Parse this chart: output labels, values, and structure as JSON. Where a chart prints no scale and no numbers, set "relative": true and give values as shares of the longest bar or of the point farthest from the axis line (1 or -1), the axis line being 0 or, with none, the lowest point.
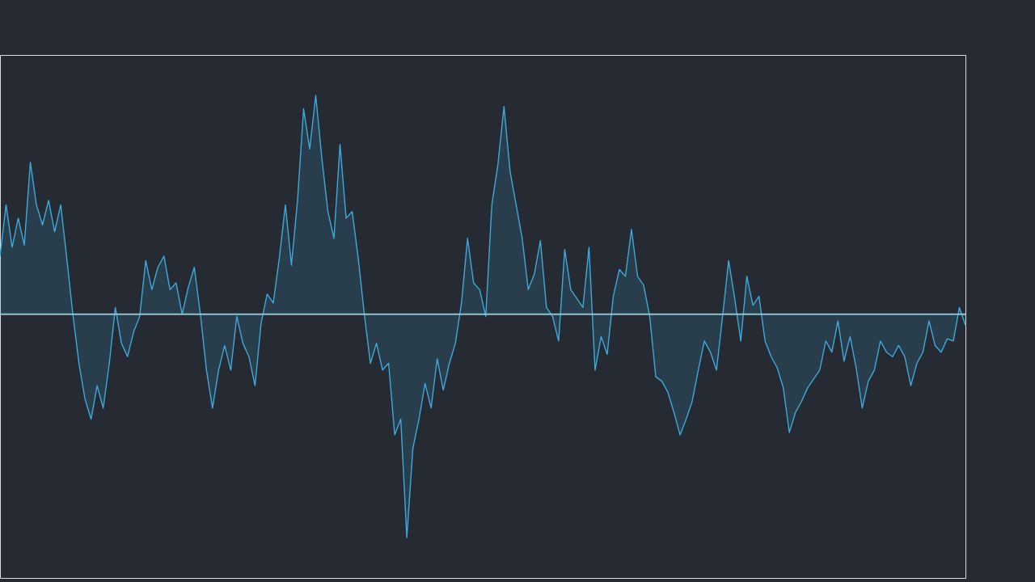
{
  "chart_data": {
    "type": "area",
    "relative": true,
    "categories": [
      null,
      null,
      null,
      null,
      null,
      null,
      null,
      null,
      null,
      null,
      null,
      null,
      null,
      null,
      null,
      null,
      null,
      null,
      null,
      null,
      null,
      null,
      null,
      null,
      null,
      null,
      null,
      null,
      null,
      null,
      null,
      null,
      null,
      null,
      null,
      null,
      null,
      null,
      null,
      null,
      null,
      null,
      null,
      null,
      null,
      null,
      null,
      null,
      null,
      null,
      null,
      null,
      null,
      null,
      null,
      null,
      null,
      null,
      null,
      null,
      null,
      null,
      null,
      null,
      null,
      null,
      null,
      null,
      null,
      null,
      null,
      null,
      null,
      null,
      null,
      null,
      null,
      null,
      null,
      null,
      null,
      null,
      null,
      null,
      null,
      null,
      null,
      null,
      null,
      null,
      null,
      null,
      null,
      null,
      null,
      null,
      null,
      null,
      null,
      null,
      null,
      null,
      null,
      null,
      null,
      null,
      null,
      null,
      null,
      null,
      null,
      null,
      null,
      null,
      null,
      null,
      null,
      null,
      null,
      null,
      null,
      null,
      null,
      null,
      null,
      null,
      null,
      null,
      null,
      null,
      null,
      null,
      null,
      null,
      null,
      null,
      null,
      null,
      null,
      null,
      null,
      null,
      null,
      null,
      null,
      null,
      null,
      null,
      null,
      null,
      null,
      null,
      null,
      null,
      null,
      null,
      null,
      null,
      null,
      null
    ],
    "series": [
      {
        "color": "#3fa9d9",
        "values": [
          0.26,
          0.49,
          0.3,
          0.43,
          0.31,
          0.68,
          0.49,
          0.4,
          0.51,
          0.37,
          0.49,
          0.25,
          0,
          -0.22,
          -0.38,
          -0.47,
          -0.32,
          -0.42,
          -0.22,
          0.03,
          -0.13,
          -0.19,
          -0.08,
          -0.01,
          0.24,
          0.11,
          0.21,
          0.26,
          0.11,
          0.14,
          0,
          0.12,
          0.21,
          0,
          -0.25,
          -0.42,
          -0.25,
          -0.14,
          -0.25,
          -0.01,
          -0.13,
          -0.19,
          -0.32,
          -0.04,
          0.09,
          0.05,
          0.25,
          0.49,
          0.22,
          0.51,
          0.92,
          0.74,
          0.98,
          0.7,
          0.46,
          0.34,
          0.76,
          0.43,
          0.46,
          0.25,
          0,
          -0.22,
          -0.13,
          -0.25,
          -0.22,
          -0.54,
          -0.47,
          -1,
          -0.6,
          -0.47,
          -0.31,
          -0.42,
          -0.2,
          -0.34,
          -0.22,
          -0.13,
          0.05,
          0.34,
          0.14,
          0.11,
          -0.01,
          0.49,
          0.67,
          0.93,
          0.64,
          0.49,
          0.34,
          0.11,
          0.18,
          0.33,
          0.03,
          -0.01,
          -0.12,
          0.29,
          0.11,
          0.07,
          0.03,
          0.3,
          -0.25,
          -0.1,
          -0.18,
          0.08,
          0.2,
          0.17,
          0.38,
          0.17,
          0.13,
          -0.01,
          -0.28,
          -0.3,
          -0.35,
          -0.44,
          -0.54,
          -0.47,
          -0.39,
          -0.25,
          -0.12,
          -0.17,
          -0.25,
          -0.01,
          0.24,
          0.07,
          -0.12,
          0.17,
          0.04,
          0.08,
          -0.12,
          -0.19,
          -0.24,
          -0.33,
          -0.53,
          -0.44,
          -0.39,
          -0.33,
          -0.29,
          -0.25,
          -0.12,
          -0.17,
          -0.03,
          -0.21,
          -0.1,
          -0.24,
          -0.42,
          -0.3,
          -0.25,
          -0.12,
          -0.17,
          -0.19,
          -0.14,
          -0.19,
          -0.32,
          -0.22,
          -0.17,
          -0.03,
          -0.14,
          -0.17,
          -0.11,
          -0.12,
          0.03,
          -0.05
        ]
      }
    ],
    "ref_lines": [
      {
        "axis": "y",
        "value": 0,
        "color": "#8fc3d1"
      }
    ]
  }
}
